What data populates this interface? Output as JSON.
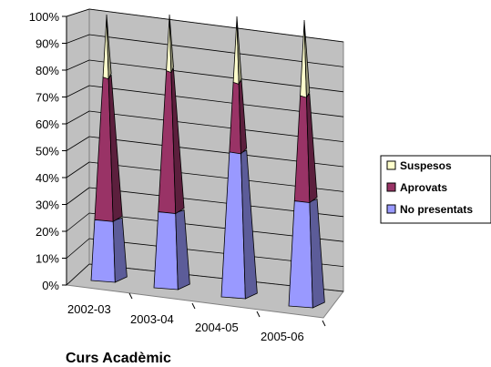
{
  "chart_data": {
    "type": "bar",
    "subtype": "stacked-100-percent-3d-cone",
    "categories": [
      "2002-03",
      "2003-04",
      "2004-05",
      "2005-06"
    ],
    "series": [
      {
        "name": "No presentats",
        "values": [
          23,
          28,
          52,
          37
        ],
        "color": "#9999ff"
      },
      {
        "name": "Aprovats",
        "values": [
          54,
          52,
          25,
          37
        ],
        "color": "#993366"
      },
      {
        "name": "Suspesos",
        "values": [
          23,
          20,
          23,
          26
        ],
        "color": "#ffffcc"
      }
    ],
    "title": "",
    "xlabel": "Curs Acadèmic",
    "ylabel": "",
    "ylim": [
      0,
      100
    ],
    "yticks": [
      "0%",
      "10%",
      "20%",
      "30%",
      "40%",
      "50%",
      "60%",
      "70%",
      "80%",
      "90%",
      "100%"
    ],
    "grid": true,
    "legend_position": "right",
    "legend_order": [
      "Suspesos",
      "Aprovats",
      "No presentats"
    ]
  }
}
